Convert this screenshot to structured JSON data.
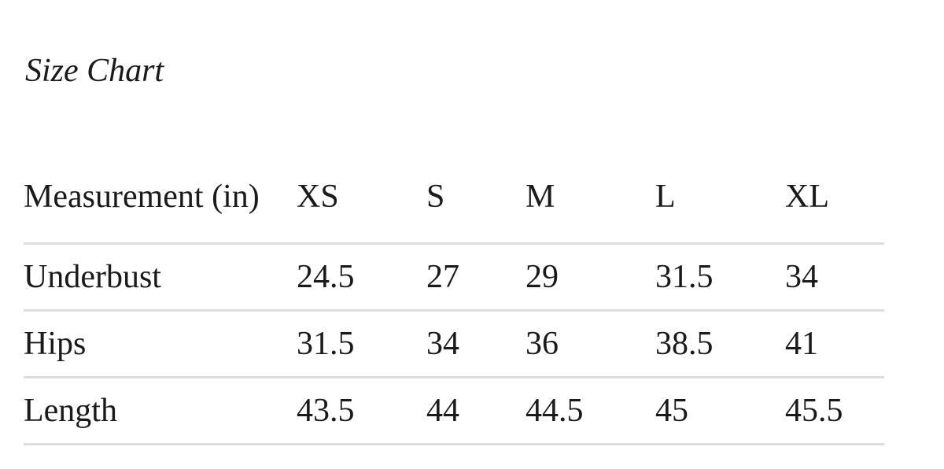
{
  "title": "Size Chart",
  "headers": [
    "Measurement (in)",
    "XS",
    "S",
    "M",
    "L",
    "XL"
  ],
  "rows": [
    [
      "Underbust",
      "24.5",
      "27",
      "29",
      "31.5",
      "34"
    ],
    [
      "Hips",
      "31.5",
      "34",
      "36",
      "38.5",
      "41"
    ],
    [
      "Length",
      "43.5",
      "44",
      "44.5",
      "45",
      "45.5"
    ]
  ]
}
